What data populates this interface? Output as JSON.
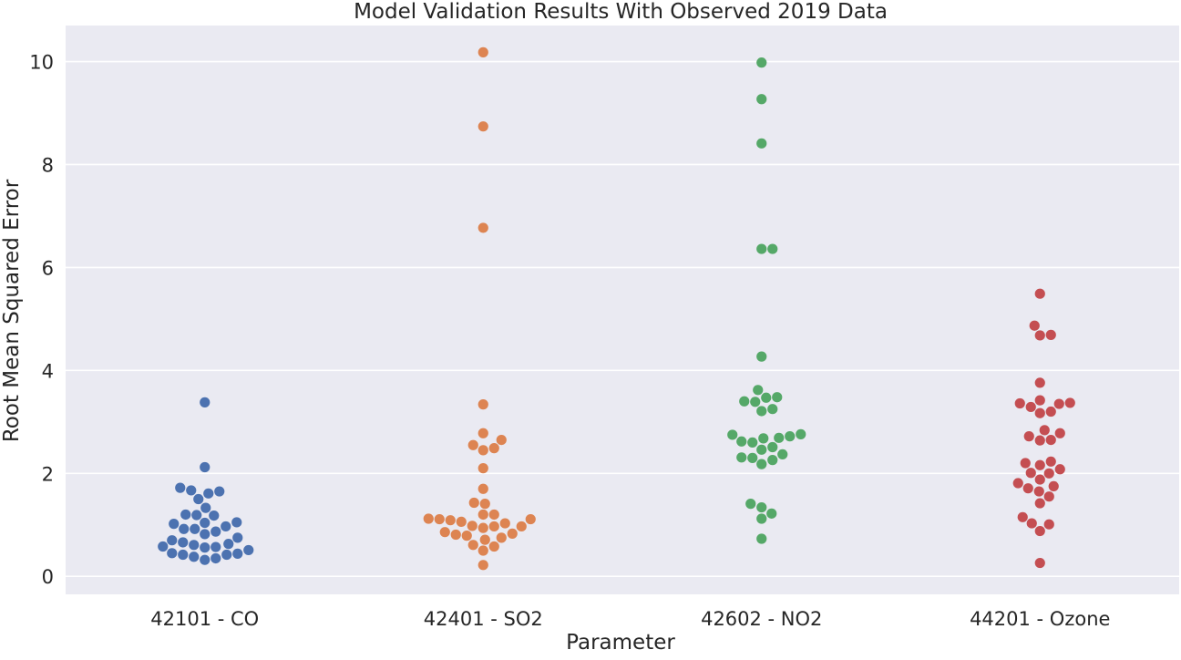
{
  "chart_data": {
    "type": "scatter",
    "subtype": "swarm",
    "title": "Model Validation Results With Observed 2019 Data",
    "xlabel": "Parameter",
    "ylabel": "Root Mean Squared Error",
    "categories": [
      "42101 - CO",
      "42401 - SO2",
      "42602 - NO2",
      "44201 - Ozone"
    ],
    "ylim": [
      -0.35,
      10.7
    ],
    "yticks": [
      0,
      2,
      4,
      6,
      8,
      10
    ],
    "grid": true,
    "background": "#eaeaf2",
    "colors": [
      "#4c72b0",
      "#dd8452",
      "#55a868",
      "#c44e52"
    ],
    "series": [
      {
        "values": [
          3.38,
          2.12,
          1.72,
          1.67,
          1.65,
          1.61,
          1.5,
          1.33,
          1.2,
          1.19,
          1.18,
          1.05,
          1.04,
          1.02,
          0.97,
          0.92,
          0.92,
          0.87,
          0.82,
          0.75,
          0.7,
          0.66,
          0.63,
          0.61,
          0.58,
          0.57,
          0.56,
          0.51,
          0.45,
          0.44,
          0.42,
          0.42,
          0.38,
          0.35,
          0.32
        ]
      },
      {
        "values": [
          10.18,
          8.74,
          6.77,
          3.34,
          2.78,
          2.65,
          2.55,
          2.49,
          2.45,
          2.1,
          1.7,
          1.43,
          1.41,
          1.2,
          1.2,
          1.12,
          1.11,
          1.11,
          1.09,
          1.06,
          1.03,
          0.98,
          0.97,
          0.97,
          0.94,
          0.86,
          0.83,
          0.81,
          0.79,
          0.75,
          0.71,
          0.61,
          0.58,
          0.5,
          0.22
        ]
      },
      {
        "values": [
          9.98,
          9.27,
          8.41,
          6.36,
          6.36,
          4.27,
          3.62,
          3.48,
          3.47,
          3.4,
          3.39,
          3.25,
          3.21,
          2.76,
          2.75,
          2.72,
          2.69,
          2.68,
          2.62,
          2.6,
          2.51,
          2.46,
          2.37,
          2.31,
          2.3,
          2.26,
          2.18,
          1.41,
          1.34,
          1.22,
          1.12,
          0.73
        ]
      },
      {
        "values": [
          5.49,
          4.87,
          4.69,
          4.68,
          3.76,
          3.42,
          3.37,
          3.36,
          3.35,
          3.29,
          3.2,
          3.17,
          2.84,
          2.78,
          2.72,
          2.65,
          2.64,
          2.23,
          2.2,
          2.16,
          2.08,
          2.01,
          2.0,
          1.88,
          1.81,
          1.75,
          1.71,
          1.65,
          1.55,
          1.42,
          1.15,
          1.03,
          1.01,
          0.88,
          0.26
        ]
      }
    ]
  }
}
